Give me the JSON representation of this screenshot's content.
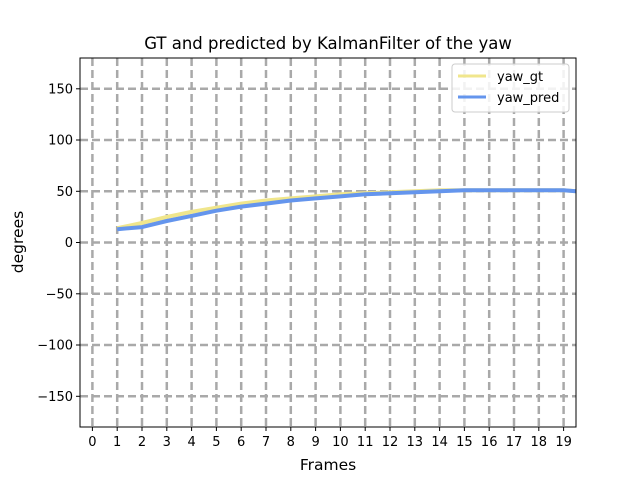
{
  "chart_data": {
    "type": "line",
    "title": "GT and predicted by KalmanFilter of the yaw",
    "xlabel": "Frames",
    "ylabel": "degrees",
    "xlim": [
      -0.5,
      19.5
    ],
    "ylim": [
      -180,
      180
    ],
    "xticks": [
      0,
      1,
      2,
      3,
      4,
      5,
      6,
      7,
      8,
      9,
      10,
      11,
      12,
      13,
      14,
      15,
      16,
      17,
      18,
      19
    ],
    "yticks": [
      -150,
      -100,
      -50,
      0,
      50,
      100,
      150
    ],
    "grid": true,
    "legend_position": "top-right",
    "x": [
      1,
      2,
      3,
      4,
      5,
      6,
      7,
      8,
      9,
      10,
      11,
      12,
      13,
      14,
      15,
      16,
      17,
      18,
      19,
      19.5
    ],
    "series": [
      {
        "name": "yaw_gt",
        "color": "#f0e68c",
        "values": [
          14,
          19,
          25,
          30,
          34,
          38,
          41,
          43,
          45,
          47,
          48,
          49,
          50,
          51,
          51,
          51,
          51,
          51,
          51,
          50
        ]
      },
      {
        "name": "yaw_pred",
        "color": "#6495ed",
        "values": [
          13,
          15,
          21,
          26,
          31,
          35,
          38,
          41,
          43,
          45,
          47,
          48,
          49,
          50,
          51,
          51,
          51,
          51,
          51,
          50
        ]
      }
    ]
  }
}
